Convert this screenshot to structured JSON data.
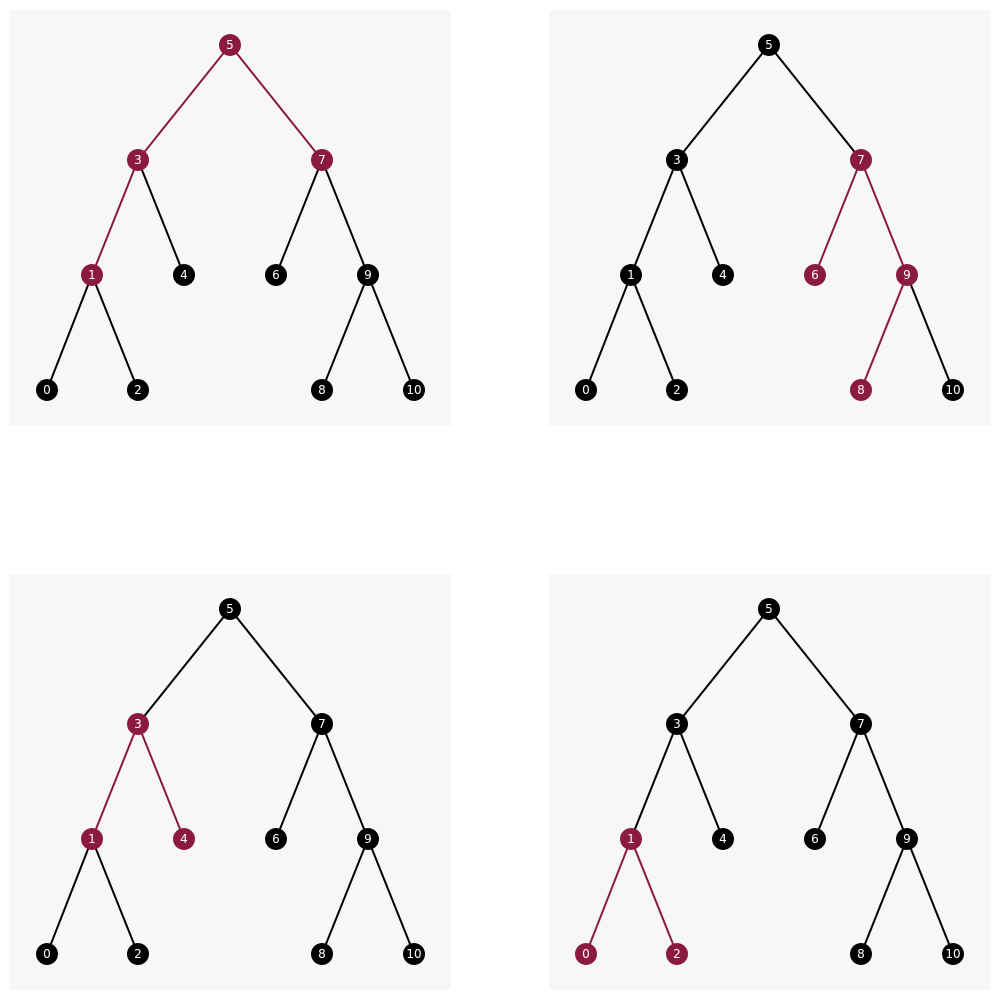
{
  "colors": {
    "default_node": "#000000",
    "highlight_node": "#8b1a3f",
    "default_edge": "#000000",
    "highlight_edge": "#8b1a3f",
    "label": "#ffffff",
    "panel_background": "#f7f7f7"
  },
  "tree": {
    "nodes": [
      {
        "key": "5",
        "label": "5"
      },
      {
        "key": "3",
        "label": "3"
      },
      {
        "key": "7",
        "label": "7"
      },
      {
        "key": "1",
        "label": "1"
      },
      {
        "key": "4",
        "label": "4"
      },
      {
        "key": "6",
        "label": "6"
      },
      {
        "key": "9",
        "label": "9"
      },
      {
        "key": "0",
        "label": "0"
      },
      {
        "key": "2",
        "label": "2"
      },
      {
        "key": "8",
        "label": "8"
      },
      {
        "key": "10",
        "label": "10"
      }
    ],
    "edges": [
      {
        "from": "5",
        "to": "3"
      },
      {
        "from": "5",
        "to": "7"
      },
      {
        "from": "3",
        "to": "1"
      },
      {
        "from": "3",
        "to": "4"
      },
      {
        "from": "7",
        "to": "6"
      },
      {
        "from": "7",
        "to": "9"
      },
      {
        "from": "1",
        "to": "0"
      },
      {
        "from": "1",
        "to": "2"
      },
      {
        "from": "9",
        "to": "8"
      },
      {
        "from": "9",
        "to": "10"
      }
    ]
  },
  "panels": [
    {
      "highlighted_nodes": [
        "5",
        "3",
        "7",
        "1"
      ],
      "highlighted_edges": [
        [
          "5",
          "3"
        ],
        [
          "5",
          "7"
        ],
        [
          "3",
          "1"
        ]
      ]
    },
    {
      "highlighted_nodes": [
        "7",
        "6",
        "9",
        "8"
      ],
      "highlighted_edges": [
        [
          "7",
          "6"
        ],
        [
          "7",
          "9"
        ],
        [
          "9",
          "8"
        ]
      ]
    },
    {
      "highlighted_nodes": [
        "3",
        "1",
        "4"
      ],
      "highlighted_edges": [
        [
          "3",
          "1"
        ],
        [
          "3",
          "4"
        ]
      ]
    },
    {
      "highlighted_nodes": [
        "1",
        "0",
        "2"
      ],
      "highlighted_edges": [
        [
          "1",
          "0"
        ],
        [
          "1",
          "2"
        ]
      ]
    }
  ]
}
